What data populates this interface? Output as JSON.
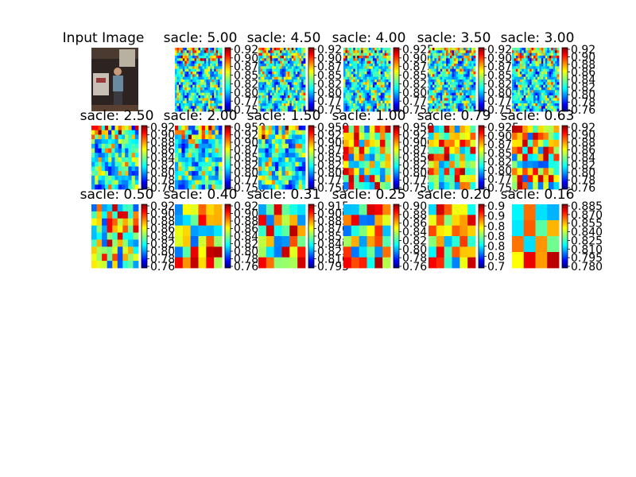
{
  "figure": {
    "type": "heatmap-grid",
    "input_title": "Input Image",
    "colormap": "jet"
  },
  "chart_data": [
    {
      "type": "heatmap",
      "title": "sacle: 5.00",
      "scale": 5.0,
      "texture": "fine",
      "colorbar_ticks": [
        "0.92",
        "0.90",
        "0.87",
        "0.85",
        "0.82",
        "0.80",
        "0.77",
        "0.75"
      ]
    },
    {
      "type": "heatmap",
      "title": "sacle: 4.50",
      "scale": 4.5,
      "texture": "fine",
      "colorbar_ticks": [
        "0.92",
        "0.90",
        "0.87",
        "0.85",
        "0.82",
        "0.80",
        "0.77",
        "0.75"
      ]
    },
    {
      "type": "heatmap",
      "title": "sacle: 4.00",
      "scale": 4.0,
      "texture": "fine",
      "colorbar_ticks": [
        "0.925",
        "0.900",
        "0.875",
        "0.850",
        "0.825",
        "0.800",
        "0.775",
        "0.750"
      ]
    },
    {
      "type": "heatmap",
      "title": "sacle: 3.50",
      "scale": 3.5,
      "texture": "fine",
      "colorbar_ticks": [
        "0.92",
        "0.90",
        "0.87",
        "0.85",
        "0.82",
        "0.80",
        "0.77",
        "0.75"
      ]
    },
    {
      "type": "heatmap",
      "title": "sacle: 3.00",
      "scale": 3.0,
      "texture": "fine",
      "colorbar_ticks": [
        "0.92",
        "0.90",
        "0.88",
        "0.86",
        "0.84",
        "0.82",
        "0.80",
        "0.78",
        "0.76"
      ]
    },
    {
      "type": "heatmap",
      "title": "sacle: 2.50",
      "scale": 2.5,
      "texture": "medium",
      "colorbar_ticks": [
        "0.92",
        "0.90",
        "0.88",
        "0.86",
        "0.84",
        "0.82",
        "0.80",
        "0.78",
        "0.76"
      ]
    },
    {
      "type": "heatmap",
      "title": "sacle: 2.00",
      "scale": 2.0,
      "texture": "medium",
      "colorbar_ticks": [
        "0.950",
        "0.925",
        "0.900",
        "0.875",
        "0.850",
        "0.825",
        "0.800",
        "0.775",
        "0.750"
      ]
    },
    {
      "type": "heatmap",
      "title": "sacle: 1.50",
      "scale": 1.5,
      "texture": "medium",
      "colorbar_ticks": [
        "0.950",
        "0.925",
        "0.900",
        "0.875",
        "0.850",
        "0.825",
        "0.800",
        "0.775",
        "0.750"
      ]
    },
    {
      "type": "heatmap",
      "title": "sacle: 1.00",
      "scale": 1.0,
      "texture": "coarse",
      "colorbar_ticks": [
        "0.950",
        "0.925",
        "0.900",
        "0.875",
        "0.850",
        "0.825",
        "0.800",
        "0.775",
        "0.750"
      ]
    },
    {
      "type": "heatmap",
      "title": "sacle: 0.79",
      "scale": 0.79,
      "texture": "coarse",
      "colorbar_ticks": [
        "0.925",
        "0.900",
        "0.875",
        "0.850",
        "0.825",
        "0.800",
        "0.775",
        "0.750"
      ]
    },
    {
      "type": "heatmap",
      "title": "sacle: 0.63",
      "scale": 0.63,
      "texture": "coarse",
      "colorbar_ticks": [
        "0.92",
        "0.90",
        "0.88",
        "0.86",
        "0.84",
        "0.82",
        "0.80",
        "0.78",
        "0.76"
      ]
    },
    {
      "type": "heatmap",
      "title": "sacle: 0.50",
      "scale": 0.5,
      "texture": "coarse",
      "colorbar_ticks": [
        "0.92",
        "0.90",
        "0.88",
        "0.86",
        "0.84",
        "0.82",
        "0.80",
        "0.78",
        "0.76"
      ]
    },
    {
      "type": "heatmap",
      "title": "sacle: 0.40",
      "scale": 0.4,
      "texture": "blurry",
      "colorbar_ticks": [
        "0.92",
        "0.90",
        "0.88",
        "0.86",
        "0.84",
        "0.82",
        "0.80",
        "0.78",
        "0.76"
      ]
    },
    {
      "type": "heatmap",
      "title": "sacle: 0.31",
      "scale": 0.31,
      "texture": "blurry",
      "colorbar_ticks": [
        "0.915",
        "0.900",
        "0.885",
        "0.870",
        "0.855",
        "0.840",
        "0.825",
        "0.810",
        "0.795"
      ]
    },
    {
      "type": "heatmap",
      "title": "sacle: 0.25",
      "scale": 0.25,
      "texture": "blurry",
      "colorbar_ticks": [
        "0.90",
        "0.88",
        "0.86",
        "0.84",
        "0.82",
        "0.80",
        "0.78",
        "0.76"
      ]
    },
    {
      "type": "heatmap",
      "title": "sacle: 0.20",
      "scale": 0.2,
      "texture": "blurry",
      "colorbar_ticks": [
        "0.9",
        "0.9",
        "0.8",
        "0.8",
        "0.8",
        "0.8",
        "0.7"
      ]
    },
    {
      "type": "heatmap",
      "title": "sacle: 0.16",
      "scale": 0.16,
      "texture": "smooth",
      "colorbar_ticks": [
        "0.885",
        "0.870",
        "0.855",
        "0.840",
        "0.825",
        "0.810",
        "0.795",
        "0.780"
      ]
    }
  ]
}
